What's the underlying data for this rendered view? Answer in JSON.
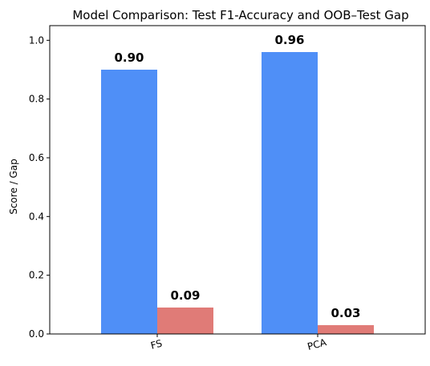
{
  "chart_data": {
    "type": "bar",
    "title": "Model Comparison: Test F1-Accuracy and OOB–Test Gap",
    "xlabel": "",
    "ylabel": "Score / Gap",
    "categories": [
      "FS",
      "PCA"
    ],
    "series": [
      {
        "values": [
          0.9,
          0.96
        ],
        "color": "#4f8ff7",
        "labels": [
          "0.90",
          "0.96"
        ]
      },
      {
        "values": [
          0.09,
          0.03
        ],
        "color": "#e07b77",
        "labels": [
          "0.09",
          "0.03"
        ]
      }
    ],
    "ylim": [
      0,
      1.05
    ],
    "yticks": [
      0.0,
      0.2,
      0.4,
      0.6,
      0.8,
      1.0
    ],
    "ytick_labels": [
      "0.0",
      "0.2",
      "0.4",
      "0.6",
      "0.8",
      "1.0"
    ],
    "xtick_rotation": -15,
    "grid": false,
    "legend": "none"
  }
}
